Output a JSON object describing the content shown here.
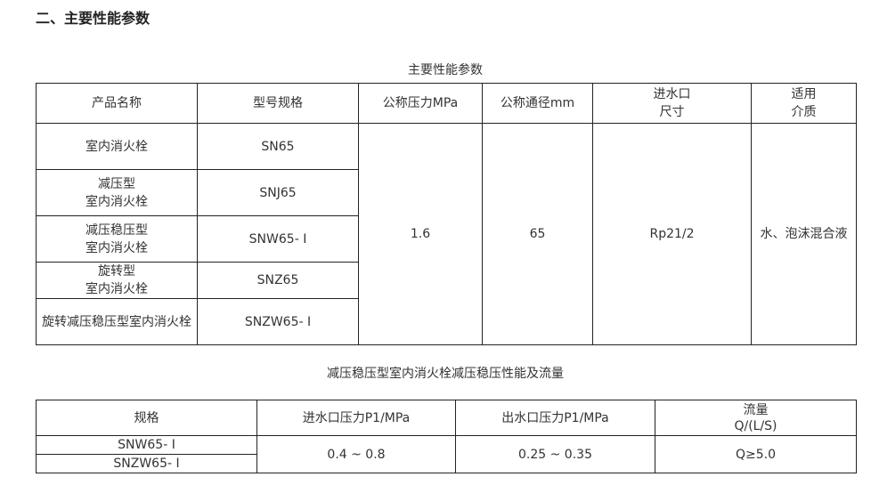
{
  "section_title": "二、主要性能参数",
  "table1": {
    "caption": "主要性能参数",
    "headers": [
      "产品名称",
      "型号规格",
      "公称压力MPa",
      "公称通径mm",
      "进水口\n尺寸",
      "适用\n介质"
    ],
    "rows": [
      {
        "name": "室内消火栓",
        "model": "SN65"
      },
      {
        "name": "减压型\n室内消火栓",
        "model": "SNJ65"
      },
      {
        "name": "减压稳压型\n室内消火栓",
        "model": "SNW65- I"
      },
      {
        "name": "旋转型\n室内消火栓",
        "model": "SNZ65"
      },
      {
        "name": "旋转减压稳压型室内消火栓",
        "model": "SNZW65- I"
      }
    ],
    "pressure": "1.6",
    "diameter": "65",
    "inlet": "Rp21/2",
    "medium": "水、泡沫混合液"
  },
  "table2": {
    "caption": "减压稳压型室内消火栓减压稳压性能及流量",
    "headers": [
      "规格",
      "进水口压力P1/MPa",
      "出水口压力P1/MPa",
      "流量\nQ/(L/S)"
    ],
    "models": [
      "SNW65- I",
      "SNZW65- I"
    ],
    "inlet_pressure": "0.4 ~ 0.8",
    "outlet_pressure": "0.25 ~ 0.35",
    "flow": "Q≥5.0"
  }
}
